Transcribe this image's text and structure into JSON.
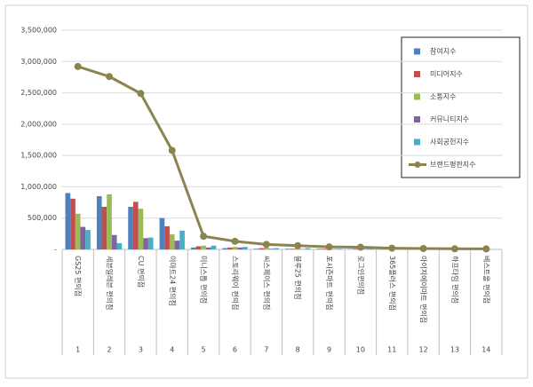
{
  "chart_data": {
    "type": "bar-line",
    "categories": [
      "GS25 편의점",
      "세븐일레븐 편의점",
      "CU 편의점",
      "이마트24 편의점",
      "미니스톱 편의점",
      "스토리웨이 편의점",
      "씨스페이스 편의점",
      "블루25 편의점",
      "포시즌마트 편의점",
      "로그인편의점",
      "365플러스 편의점",
      "아이지에이마트 편의점",
      "하프타임 편의점",
      "베스트올 편의점"
    ],
    "ranks": [
      1,
      2,
      3,
      4,
      5,
      6,
      7,
      8,
      9,
      10,
      11,
      12,
      13,
      14
    ],
    "series": [
      {
        "name": "참여지수",
        "type": "bar",
        "color": "#4f81bd",
        "values": [
          900000,
          850000,
          680000,
          500000,
          30000,
          20000,
          10000,
          10000,
          10000,
          5000,
          5000,
          3000,
          2000,
          2000
        ]
      },
      {
        "name": "미디어지수",
        "type": "bar",
        "color": "#c0504d",
        "values": [
          810000,
          680000,
          760000,
          370000,
          50000,
          30000,
          20000,
          10000,
          10000,
          10000,
          5000,
          5000,
          3000,
          2000
        ]
      },
      {
        "name": "소통지수",
        "type": "bar",
        "color": "#9bbb59",
        "values": [
          570000,
          880000,
          650000,
          240000,
          60000,
          40000,
          30000,
          20000,
          20000,
          15000,
          5000,
          5000,
          4000,
          3000
        ]
      },
      {
        "name": "커뮤니티지수",
        "type": "bar",
        "color": "#8064a2",
        "values": [
          360000,
          230000,
          180000,
          140000,
          30000,
          30000,
          10000,
          5000,
          5000,
          5000,
          2000,
          2000,
          1000,
          1000
        ]
      },
      {
        "name": "사회공헌지수",
        "type": "bar",
        "color": "#4bacc6",
        "values": [
          310000,
          100000,
          190000,
          300000,
          60000,
          40000,
          20000,
          20000,
          10000,
          10000,
          5000,
          3000,
          2000,
          2000
        ]
      },
      {
        "name": "브랜드평판지수",
        "type": "line",
        "color": "#8c8450",
        "values": [
          2920000,
          2760000,
          2490000,
          1580000,
          210000,
          130000,
          80000,
          60000,
          40000,
          35000,
          20000,
          15000,
          10000,
          8000
        ]
      }
    ],
    "ylim": [
      0,
      3500000
    ],
    "yticks": [
      {
        "value": 0,
        "label": "-"
      },
      {
        "value": 500000,
        "label": "500,000"
      },
      {
        "value": 1000000,
        "label": "1,000,000"
      },
      {
        "value": 1500000,
        "label": "1,500,000"
      },
      {
        "value": 2000000,
        "label": "2,000,000"
      },
      {
        "value": 2500000,
        "label": "2,500,000"
      },
      {
        "value": 3000000,
        "label": "3,000,000"
      },
      {
        "value": 3500000,
        "label": "3,500,000"
      }
    ],
    "grid": true,
    "legend": "top-right"
  }
}
